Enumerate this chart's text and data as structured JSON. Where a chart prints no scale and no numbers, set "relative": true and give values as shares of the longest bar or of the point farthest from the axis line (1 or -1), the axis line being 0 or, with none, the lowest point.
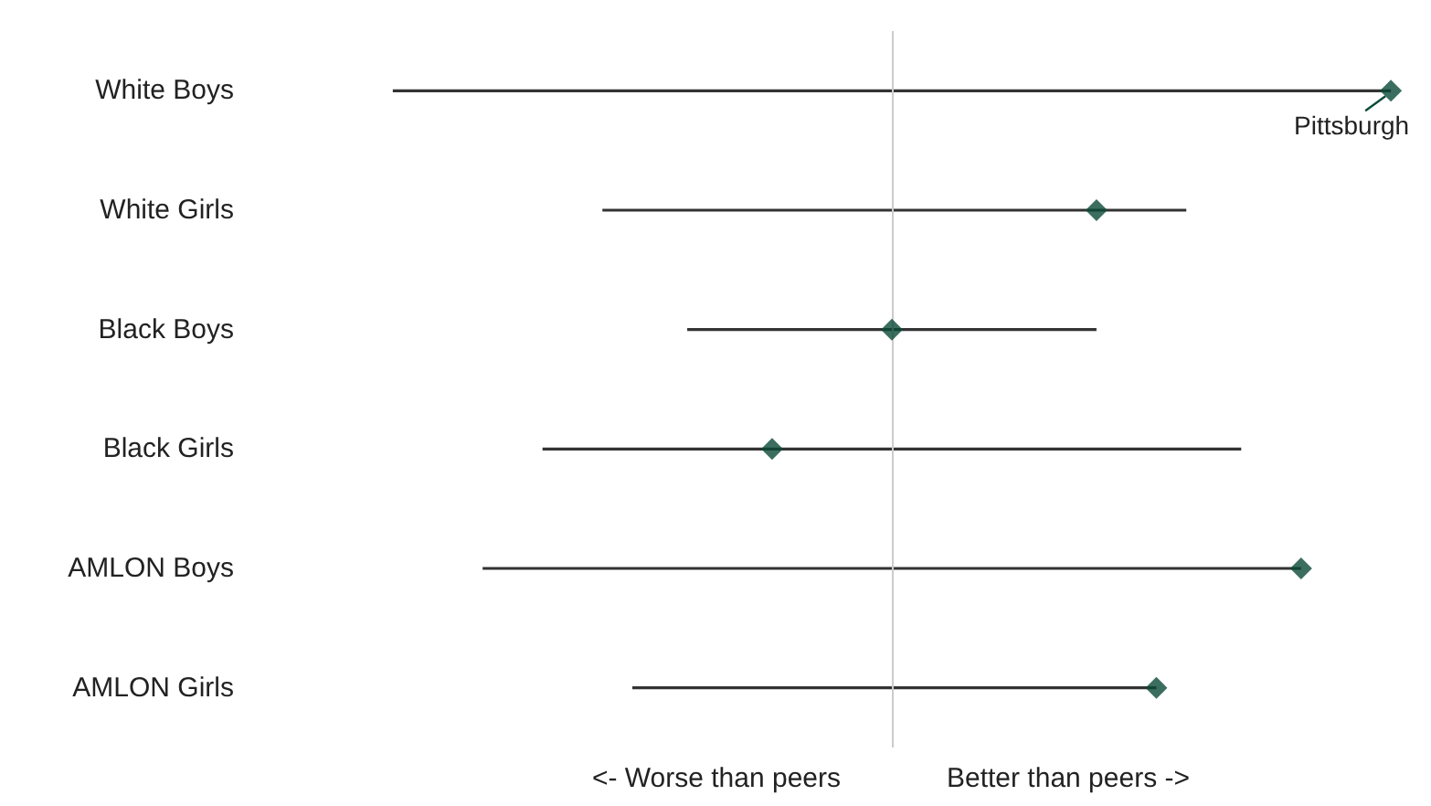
{
  "chart_data": {
    "type": "bar",
    "orientation": "horizontal",
    "relative": true,
    "categories": [
      "White Boys",
      "White Girls",
      "Black Boys",
      "Black Girls",
      "AMLON Boys",
      "AMLON Girls"
    ],
    "series": [
      {
        "type": "bar",
        "color": "#333333",
        "values": [
          -1.0,
          -0.58,
          -0.41,
          -0.7,
          -0.82,
          -0.52
        ]
      },
      {
        "type": "bar",
        "color": "#333333",
        "values": [
          1.0,
          0.59,
          0.41,
          0.7,
          0.82,
          0.53
        ]
      },
      {
        "type": "scatter",
        "color": "#0b4a38",
        "marker": "diamond",
        "values": [
          1.0,
          0.41,
          0,
          -0.24,
          0.82,
          0.53
        ]
      }
    ],
    "ref_lines": [
      {
        "axis": "x",
        "value": 0,
        "color": "#cccccc"
      }
    ],
    "annotations": [
      {
        "text": "Pittsburgh",
        "x": 1.0,
        "y": "White Boys"
      },
      "<- Worse than peers",
      "Better than peers ->"
    ]
  }
}
